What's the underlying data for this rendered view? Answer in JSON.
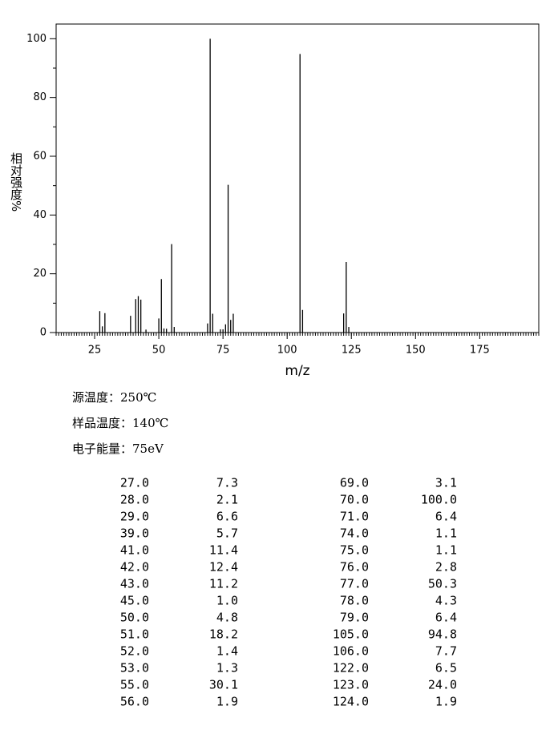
{
  "chart_data": {
    "type": "bar",
    "x_label": "m/z",
    "y_label": "相对强度%",
    "x": [
      27,
      28,
      29,
      39,
      41,
      42,
      43,
      45,
      50,
      51,
      52,
      53,
      55,
      56,
      69,
      70,
      71,
      74,
      75,
      76,
      77,
      78,
      79,
      105,
      106,
      122,
      123,
      124
    ],
    "values": [
      7.3,
      2.1,
      6.6,
      5.7,
      11.4,
      12.4,
      11.2,
      1.0,
      4.8,
      18.2,
      1.4,
      1.3,
      30.1,
      1.9,
      3.1,
      100,
      6.4,
      1.1,
      1.1,
      2.8,
      50.3,
      4.3,
      6.4,
      94.8,
      7.7,
      6.5,
      24.0,
      1.9
    ],
    "color": "#000000",
    "xlim": [
      10,
      198
    ],
    "ylim": [
      0,
      105
    ],
    "xticks": [
      25,
      50,
      75,
      100,
      125,
      150,
      175
    ],
    "yticks": [
      0,
      20,
      40,
      60,
      80,
      100
    ]
  },
  "info": [
    "源温度：250℃",
    "样品温度：140℃",
    "电子能量：75eV"
  ],
  "table": {
    "rows": [
      [
        "27.0",
        "7.3",
        "69.0",
        "3.1"
      ],
      [
        "28.0",
        "2.1",
        "70.0",
        "100.0"
      ],
      [
        "29.0",
        "6.6",
        "71.0",
        "6.4"
      ],
      [
        "39.0",
        "5.7",
        "74.0",
        "1.1"
      ],
      [
        "41.0",
        "11.4",
        "75.0",
        "1.1"
      ],
      [
        "42.0",
        "12.4",
        "76.0",
        "2.8"
      ],
      [
        "43.0",
        "11.2",
        "77.0",
        "50.3"
      ],
      [
        "45.0",
        "1.0",
        "78.0",
        "4.3"
      ],
      [
        "50.0",
        "4.8",
        "79.0",
        "6.4"
      ],
      [
        "51.0",
        "18.2",
        "105.0",
        "94.8"
      ],
      [
        "52.0",
        "1.4",
        "106.0",
        "7.7"
      ],
      [
        "53.0",
        "1.3",
        "122.0",
        "6.5"
      ],
      [
        "55.0",
        "30.1",
        "123.0",
        "24.0"
      ],
      [
        "56.0",
        "1.9",
        "124.0",
        "1.9"
      ]
    ]
  }
}
